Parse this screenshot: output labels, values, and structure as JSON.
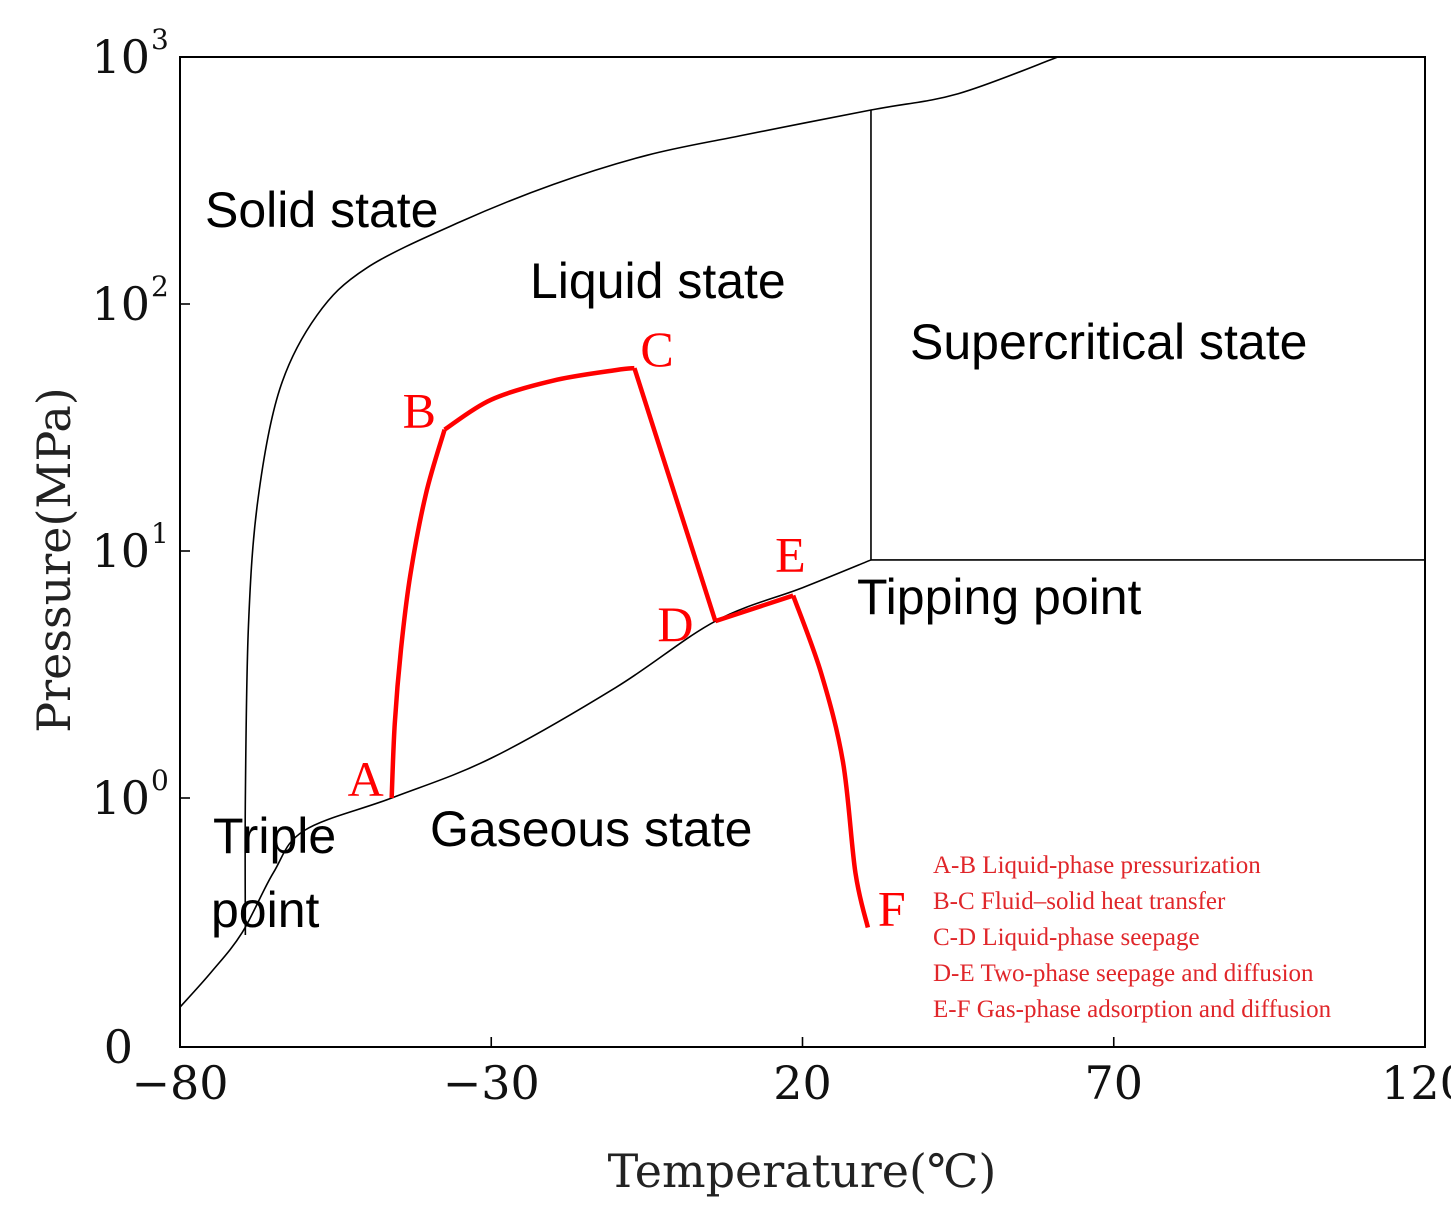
{
  "chart_data": {
    "type": "line",
    "title": "",
    "xlabel": "Temperature(℃)",
    "ylabel": "Pressure(MPa)",
    "xlim": [
      -80,
      120
    ],
    "ylim": [
      0,
      1000
    ],
    "y_scale": "log, with a linear segment between 0 and 10^0",
    "x_ticks": [
      {
        "value": -80,
        "label": "−80"
      },
      {
        "value": -30,
        "label": "−30"
      },
      {
        "value": 20,
        "label": "20"
      },
      {
        "value": 70,
        "label": "70"
      },
      {
        "value": 120,
        "label": "120"
      }
    ],
    "y_ticks": [
      {
        "value": 0,
        "base": "0",
        "exp": ""
      },
      {
        "value": 1,
        "base": "10",
        "exp": "0"
      },
      {
        "value": 10,
        "base": "10",
        "exp": "1"
      },
      {
        "value": 100,
        "base": "10",
        "exp": "2"
      },
      {
        "value": 1000,
        "base": "10",
        "exp": "3"
      }
    ],
    "grid": false,
    "colors": {
      "phase_lines": "#000000",
      "process_path": "#ff0000",
      "legend_text": "#e0262a"
    },
    "phase_boundaries": [
      {
        "key": "solid-liquid-boundary",
        "points": [
          [
            -69.5,
            0.45
          ],
          [
            -69.5,
            1.0
          ],
          [
            -69.0,
            5.0
          ],
          [
            -67.5,
            16.0
          ],
          [
            -64.0,
            45.0
          ],
          [
            -58.0,
            90.0
          ],
          [
            -50.0,
            140.0
          ],
          [
            -35.0,
            215.0
          ],
          [
            -20.0,
            305.0
          ],
          [
            -5.0,
            400.0
          ],
          [
            10.0,
            480.0
          ],
          [
            31.0,
            610.0
          ],
          [
            45.0,
            710.0
          ],
          [
            61.0,
            1000.0
          ]
        ]
      },
      {
        "key": "vaporization-curve",
        "points": [
          [
            -80.0,
            0.16
          ],
          [
            -75.0,
            0.3
          ],
          [
            -70.0,
            0.46
          ],
          [
            -65.0,
            0.7
          ],
          [
            -60.0,
            0.87
          ],
          [
            -46.0,
            1.0
          ],
          [
            -30.0,
            1.45
          ],
          [
            -10.0,
            2.8
          ],
          [
            6.0,
            5.2
          ],
          [
            20.0,
            7.1
          ],
          [
            31.0,
            9.2
          ]
        ]
      },
      {
        "key": "critical-pressure-line",
        "points": [
          [
            31.0,
            9.2
          ],
          [
            120.0,
            9.2
          ]
        ]
      },
      {
        "key": "critical-temperature-line",
        "points": [
          [
            31.0,
            9.2
          ],
          [
            31.0,
            610.0
          ]
        ]
      }
    ],
    "series": [
      {
        "points": [
          [
            -46.0,
            1.0
          ],
          [
            -45.5,
            2.0
          ],
          [
            -44.5,
            4.0
          ],
          [
            -43.0,
            8.0
          ],
          [
            -40.5,
            17.0
          ],
          [
            -37.5,
            31.0
          ],
          [
            -30.0,
            41.0
          ],
          [
            -20.0,
            49.0
          ],
          [
            -10.0,
            54.0
          ],
          [
            -7.0,
            55.0
          ],
          [
            -2.0,
            24.0
          ],
          [
            6.0,
            5.2
          ],
          [
            18.5,
            6.6
          ],
          [
            23.0,
            3.2
          ],
          [
            26.5,
            1.4
          ],
          [
            28.5,
            0.7
          ],
          [
            30.5,
            0.48
          ]
        ]
      }
    ],
    "point_labels": [
      {
        "label": "A",
        "x": -46.0,
        "y": 1.0
      },
      {
        "label": "B",
        "x": -37.5,
        "y": 31.0
      },
      {
        "label": "C",
        "x": -7.0,
        "y": 55.0
      },
      {
        "label": "D",
        "x": 6.0,
        "y": 5.2
      },
      {
        "label": "E",
        "x": 18.5,
        "y": 6.6
      },
      {
        "label": "F",
        "x": 30.5,
        "y": 0.48
      }
    ],
    "annotations": [
      {
        "key": "solid",
        "text": "Solid state"
      },
      {
        "key": "liquid",
        "text": "Liquid state"
      },
      {
        "key": "supercritical",
        "text": "Supercritical state"
      },
      {
        "key": "tipping",
        "text": "Tipping point"
      },
      {
        "key": "gaseous",
        "text": "Gaseous state"
      },
      {
        "key": "triple1",
        "text": "Triple"
      },
      {
        "key": "triple2",
        "text": "point"
      }
    ],
    "legend": {
      "placement": "bottom-right",
      "entries": [
        "A-B Liquid-phase pressurization",
        "B-C Fluid–solid heat transfer",
        "C-D Liquid-phase seepage",
        "D-E Two-phase seepage and diffusion",
        "E-F Gas-phase adsorption and diffusion"
      ]
    }
  }
}
